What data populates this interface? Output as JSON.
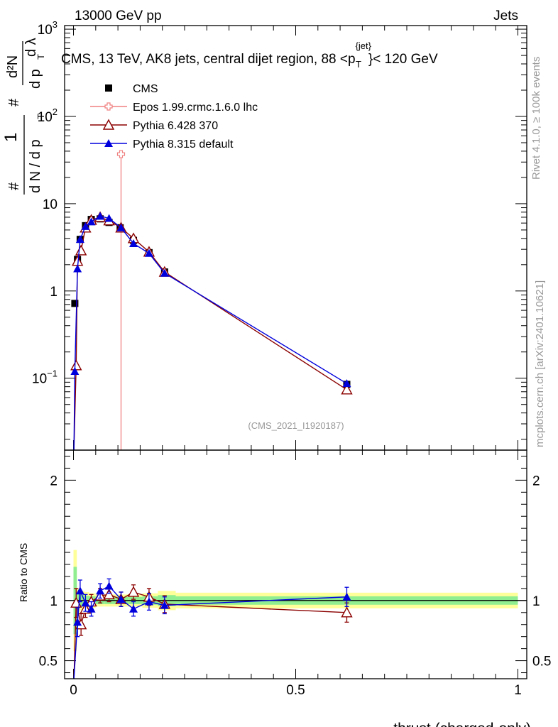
{
  "header": {
    "left": "13000 GeV pp",
    "right": "Jets"
  },
  "title": {
    "main": "CMS, 13 TeV, AK8 jets, central dijet region, 88 <p",
    "sup": "{jet}",
    "sub": "T",
    "tail": "}< 120 GeV"
  },
  "side_labels": {
    "rivet": "Rivet 4.1.0, ≥ 100k events",
    "mcplots": "mcplots.cern.ch [arXiv:2401.10621]"
  },
  "analysis_id": "(CMS_2021_I1920187)",
  "axes": {
    "xlabel": "thrust (charged-only)",
    "ratio_ylabel": "Ratio to CMS",
    "ylabel_parts": {
      "hash": "#",
      "one": "1",
      "dN": "d N / d p",
      "T": "T",
      "d2N": "d²N",
      "dpT": "d p",
      "dlambda": "d λ"
    }
  },
  "chart_data": [
    {
      "type": "line",
      "panel": "main",
      "yscale": "log",
      "xlim": [
        -0.02,
        1.02
      ],
      "ylim": [
        0.015,
        1100
      ],
      "x_ticks": [
        "0",
        "0.5",
        "1"
      ],
      "y_ticks": [
        {
          "value": 0.1,
          "base": "10",
          "exp": "−1"
        },
        {
          "value": 1,
          "label": "1"
        },
        {
          "value": 10,
          "label": "10"
        },
        {
          "value": 100,
          "base": "10",
          "exp": "2"
        },
        {
          "value": 1000,
          "base": "10",
          "exp": "3"
        }
      ],
      "x_bins": [
        0.0,
        0.0075,
        0.015,
        0.025,
        0.035,
        0.05,
        0.07,
        0.095,
        0.125,
        0.155,
        0.19,
        0.23,
        1.0
      ],
      "series": [
        {
          "name": "CMS",
          "color": "#000000",
          "marker": "square",
          "x": [
            0.003,
            0.009,
            0.015,
            0.027,
            0.04,
            0.06,
            0.08,
            0.105,
            0.135,
            0.17,
            0.205,
            0.615
          ],
          "y": [
            0.72,
            2.3,
            3.9,
            5.6,
            6.6,
            6.7,
            6.1,
            5.3,
            3.8,
            2.75,
            1.65,
            0.085
          ]
        },
        {
          "name": "Epos 1.99.crmc.1.6.0 lhc",
          "color": "#f08080",
          "marker": "open-cross",
          "x": [
            0.107
          ],
          "y": [
            37
          ],
          "x_err": [
            0.007
          ],
          "y_err_low_to": [
            0.015
          ]
        },
        {
          "name": "Pythia 6.428 370",
          "color": "#8b0000",
          "marker": "open-triangle",
          "x": [
            0.001,
            0.006,
            0.009,
            0.017,
            0.027,
            0.04,
            0.06,
            0.08,
            0.107,
            0.135,
            0.17,
            0.205,
            0.615
          ],
          "y": [
            0.015,
            0.14,
            2.2,
            2.9,
            5.3,
            6.5,
            7.0,
            6.4,
            5.3,
            4.0,
            2.8,
            1.65,
            0.074
          ]
        },
        {
          "name": "Pythia 8.315 default",
          "color": "#0000dd",
          "marker": "triangle",
          "x": [
            0.001,
            0.003,
            0.009,
            0.015,
            0.027,
            0.04,
            0.06,
            0.08,
            0.107,
            0.135,
            0.17,
            0.205,
            0.615
          ],
          "y": [
            0.015,
            0.12,
            1.8,
            3.9,
            5.5,
            6.2,
            7.2,
            6.8,
            5.3,
            3.5,
            2.7,
            1.6,
            0.087
          ]
        }
      ]
    },
    {
      "type": "line",
      "panel": "ratio",
      "ylim": [
        0.35,
        2.25
      ],
      "y_ticks": [
        {
          "value": 0.5,
          "label": "0.5"
        },
        {
          "value": 1,
          "label": "1"
        },
        {
          "value": 2,
          "label": "2"
        }
      ],
      "bands": {
        "inner_color": "#90ee90",
        "outer_color": "#ffff99",
        "x_bins": [
          0.0,
          0.0075,
          0.015,
          0.025,
          0.035,
          0.05,
          0.07,
          0.095,
          0.125,
          0.155,
          0.19,
          0.23,
          1.0
        ],
        "inner": [
          0.28,
          0.06,
          0.05,
          0.04,
          0.035,
          0.03,
          0.03,
          0.03,
          0.03,
          0.035,
          0.045,
          0.035
        ],
        "outer": [
          0.42,
          0.1,
          0.08,
          0.07,
          0.06,
          0.05,
          0.05,
          0.05,
          0.05,
          0.06,
          0.08,
          0.065
        ]
      },
      "series": [
        {
          "name": "Pythia 6.428 370",
          "color": "#8b0000",
          "marker": "open-triangle",
          "x": [
            0.006,
            0.017,
            0.027,
            0.04,
            0.06,
            0.08,
            0.107,
            0.135,
            0.17,
            0.205,
            0.615
          ],
          "y": [
            0.98,
            0.8,
            0.93,
            0.99,
            1.04,
            1.05,
            1.01,
            1.07,
            1.03,
            0.97,
            0.9
          ],
          "err": [
            0.12,
            0.09,
            0.07,
            0.06,
            0.06,
            0.06,
            0.06,
            0.06,
            0.07,
            0.07,
            0.08
          ]
        },
        {
          "name": "Pythia 8.315 default",
          "color": "#0000dd",
          "marker": "triangle",
          "x": [
            0.009,
            0.015,
            0.027,
            0.04,
            0.06,
            0.08,
            0.107,
            0.135,
            0.17,
            0.205,
            0.615
          ],
          "y": [
            0.82,
            1.08,
            0.98,
            0.93,
            1.08,
            1.12,
            1.01,
            0.93,
            0.99,
            0.96,
            1.03
          ],
          "err": [
            0.12,
            0.09,
            0.07,
            0.06,
            0.06,
            0.06,
            0.06,
            0.06,
            0.07,
            0.07,
            0.08
          ]
        }
      ]
    }
  ]
}
